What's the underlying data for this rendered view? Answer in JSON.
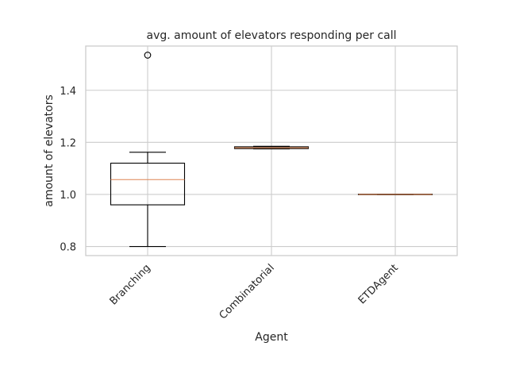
{
  "chart_data": {
    "type": "box",
    "title": "avg. amount of elevators responding per call",
    "xlabel": "Agent",
    "ylabel": "amount of elevators",
    "categories": [
      "Branching",
      "Combinatorial",
      "ETDAgent"
    ],
    "ylim": [
      0.765,
      1.57
    ],
    "yticks": [
      0.8,
      1.0,
      1.2,
      1.4
    ],
    "ytick_labels": [
      "0.8",
      "1.0",
      "1.2",
      "1.4"
    ],
    "grid": true,
    "boxes": [
      {
        "category": "Branching",
        "whisker_low": 0.8,
        "q1": 0.96,
        "median": 1.057,
        "q3": 1.12,
        "whisker_high": 1.162,
        "fliers": [
          1.535
        ]
      },
      {
        "category": "Combinatorial",
        "whisker_low": 1.175,
        "q1": 1.176,
        "median": 1.179,
        "q3": 1.183,
        "whisker_high": 1.185,
        "fliers": []
      },
      {
        "category": "ETDAgent",
        "whisker_low": 0.999,
        "q1": 0.999,
        "median": 1.0,
        "q3": 1.001,
        "whisker_high": 1.001,
        "fliers": []
      }
    ],
    "colors": {
      "box": "#000000",
      "median": "#dd8452",
      "grid": "#cccccc",
      "text": "#262626",
      "background": "#ffffff"
    },
    "xtick_rotation_deg": 45
  }
}
